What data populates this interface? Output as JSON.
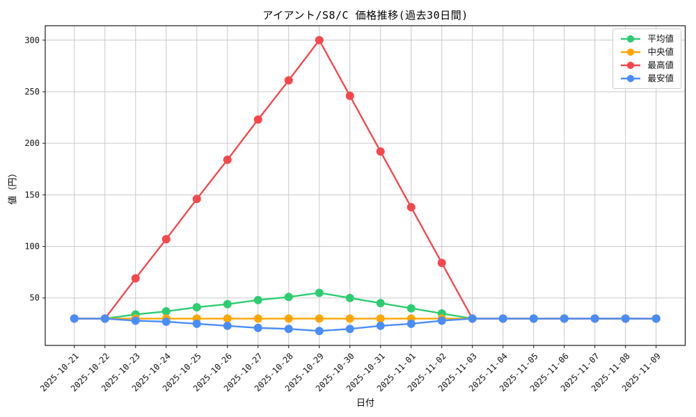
{
  "chart_data": {
    "type": "line",
    "title": "アイアント/S8/C 価格推移(過去30日間)",
    "xlabel": "日付",
    "ylabel": "値（円）",
    "x": [
      "2025-10-21",
      "2025-10-22",
      "2025-10-23",
      "2025-10-24",
      "2025-10-25",
      "2025-10-26",
      "2025-10-27",
      "2025-10-28",
      "2025-10-29",
      "2025-10-30",
      "2025-10-31",
      "2025-11-01",
      "2025-11-02",
      "2025-11-03",
      "2025-11-04",
      "2025-11-05",
      "2025-11-06",
      "2025-11-07",
      "2025-11-08",
      "2025-11-09"
    ],
    "yticks": [
      50,
      100,
      150,
      200,
      250,
      300
    ],
    "ylim": [
      4,
      314
    ],
    "grid": true,
    "legend_position": "upper right",
    "series": [
      {
        "key": "avg",
        "name": "平均値",
        "color": "#2ecc71",
        "values": [
          30,
          30,
          34,
          37,
          41,
          44,
          48,
          51,
          55,
          50,
          45,
          40,
          35,
          30,
          30,
          30,
          30,
          30,
          30,
          30
        ]
      },
      {
        "key": "median",
        "name": "中央値",
        "color": "#ffa502",
        "values": [
          30,
          30,
          30,
          30,
          30,
          30,
          30,
          30,
          30,
          30,
          30,
          30,
          30,
          30,
          30,
          30,
          30,
          30,
          30,
          30
        ]
      },
      {
        "key": "max",
        "name": "最高値",
        "color": "#f5484d",
        "values": [
          30,
          30,
          69,
          107,
          146,
          184,
          223,
          261,
          300,
          246,
          192,
          138,
          84,
          30,
          30,
          30,
          30,
          30,
          30,
          30
        ]
      },
      {
        "key": "min",
        "name": "最安値",
        "color": "#4b8df8",
        "values": [
          30,
          30,
          28,
          27,
          25,
          23,
          21,
          20,
          18,
          20,
          23,
          25,
          28,
          30,
          30,
          30,
          30,
          30,
          30,
          30
        ]
      }
    ],
    "colors": {
      "grid": "#c9c9c9",
      "spine": "#1a1a1a",
      "background": "#ffffff"
    }
  }
}
